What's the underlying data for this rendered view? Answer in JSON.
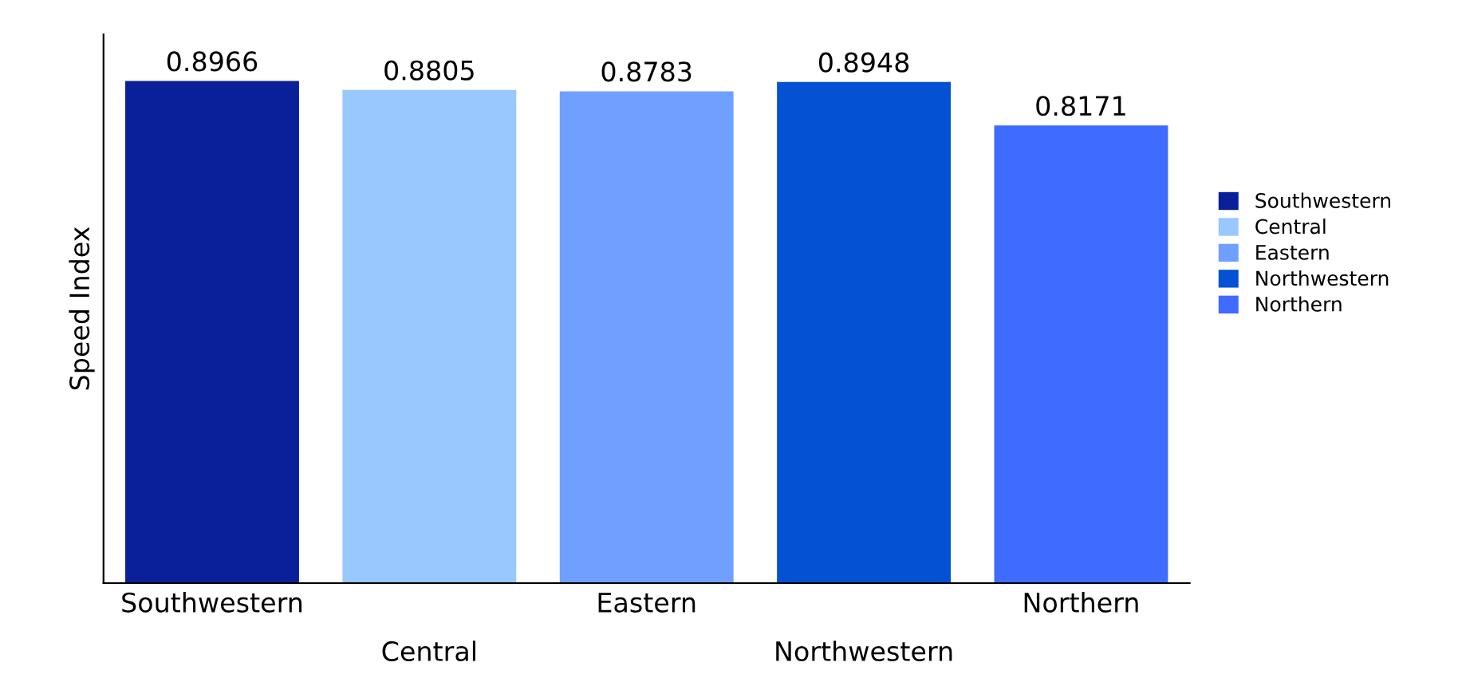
{
  "chart_data": {
    "type": "bar",
    "ylabel": "Speed Index",
    "categories": [
      "Southwestern",
      "Central",
      "Eastern",
      "Northwestern",
      "Northern"
    ],
    "series": [
      {
        "name": "Southwestern",
        "color": "#0a1f9a",
        "values": [
          0.8966,
          null,
          null,
          null,
          null
        ]
      },
      {
        "name": "Central",
        "color": "#99c8ff",
        "values": [
          null,
          0.8805,
          null,
          null,
          null
        ]
      },
      {
        "name": "Eastern",
        "color": "#6fa0ff",
        "values": [
          null,
          null,
          0.8783,
          null,
          null
        ]
      },
      {
        "name": "Northwestern",
        "color": "#0451d4",
        "values": [
          null,
          null,
          null,
          0.8948,
          null
        ]
      },
      {
        "name": "Northern",
        "color": "#3f6bff",
        "values": [
          null,
          null,
          null,
          null,
          0.8171
        ]
      }
    ],
    "ylim": [
      0,
      0.98
    ],
    "tick_labels": "x",
    "data_labels": true,
    "grid": false,
    "legend": "right"
  }
}
